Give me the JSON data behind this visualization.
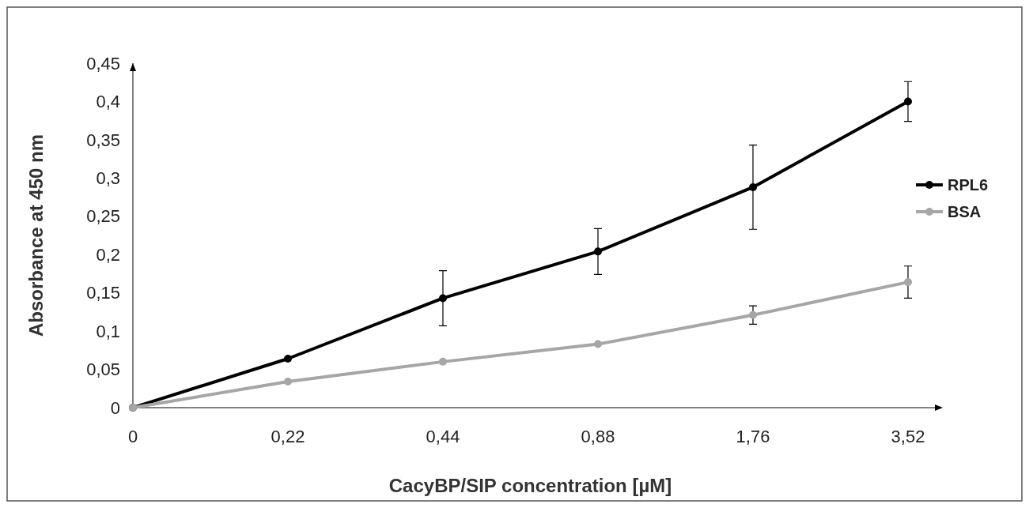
{
  "chart_data": {
    "type": "line",
    "xlabel": "CacyBP/SIP concentration [µM]",
    "ylabel": "Absorbance  at 450 nm",
    "categories": [
      "0",
      "0,22",
      "0,44",
      "0,88",
      "1,76",
      "3,52"
    ],
    "ylim": [
      0,
      0.45
    ],
    "yticks": [
      0,
      {
        "value": 0.05,
        "label": "0,05"
      },
      {
        "value": 0.1,
        "label": "0,1"
      },
      {
        "value": 0.15,
        "label": "0,15"
      },
      {
        "value": 0.2,
        "label": "0,2"
      },
      {
        "value": 0.25,
        "label": "0,25"
      },
      {
        "value": 0.3,
        "label": "0,3"
      },
      {
        "value": 0.35,
        "label": "0,35"
      },
      {
        "value": 0.4,
        "label": "0,4"
      },
      {
        "value": 0.45,
        "label": "0,45"
      }
    ],
    "series": [
      {
        "name": "RPL6",
        "color": "#000000",
        "values": [
          0,
          0.064,
          0.143,
          0.204,
          0.288,
          0.4
        ],
        "errors": [
          null,
          null,
          0.036,
          0.03,
          0.055,
          0.026
        ]
      },
      {
        "name": "BSA",
        "color": "#a6a6a6",
        "values": [
          0,
          0.034,
          0.06,
          0.083,
          0.121,
          0.164
        ],
        "errors": [
          null,
          null,
          null,
          null,
          0.012,
          0.021
        ]
      }
    ],
    "legend": "right",
    "marker": "circle",
    "line_style": "solid",
    "grid": false
  }
}
